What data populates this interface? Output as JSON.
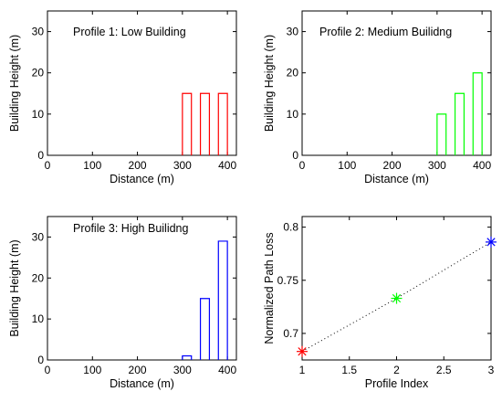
{
  "chart_data": [
    {
      "type": "bar",
      "title": "Profile 1: Low Building",
      "xlabel": "Distance (m)",
      "ylabel": "Building Height (m)",
      "xlim": [
        0,
        420
      ],
      "ylim": [
        0,
        35
      ],
      "xticks": [
        0,
        100,
        200,
        300,
        400
      ],
      "yticks": [
        0,
        10,
        20,
        30
      ],
      "color": "#ff0000",
      "buildings": [
        {
          "start": 300,
          "end": 320,
          "height": 15
        },
        {
          "start": 340,
          "end": 360,
          "height": 15
        },
        {
          "start": 380,
          "end": 400,
          "height": 15
        }
      ]
    },
    {
      "type": "bar",
      "title": "Profile 2: Medium Builidng",
      "xlabel": "Distance (m)",
      "ylabel": "Building Height (m)",
      "xlim": [
        0,
        420
      ],
      "ylim": [
        0,
        35
      ],
      "xticks": [
        0,
        100,
        200,
        300,
        400
      ],
      "yticks": [
        0,
        10,
        20,
        30
      ],
      "color": "#00ff00",
      "buildings": [
        {
          "start": 300,
          "end": 320,
          "height": 10
        },
        {
          "start": 340,
          "end": 360,
          "height": 15
        },
        {
          "start": 380,
          "end": 400,
          "height": 20
        }
      ]
    },
    {
      "type": "bar",
      "title": "Profile 3: High Builidng",
      "xlabel": "Distance (m)",
      "ylabel": "Building Height (m)",
      "xlim": [
        0,
        420
      ],
      "ylim": [
        0,
        35
      ],
      "xticks": [
        0,
        100,
        200,
        300,
        400
      ],
      "yticks": [
        0,
        10,
        20,
        30
      ],
      "color": "#0000ff",
      "buildings": [
        {
          "start": 300,
          "end": 320,
          "height": 1
        },
        {
          "start": 340,
          "end": 360,
          "height": 15
        },
        {
          "start": 380,
          "end": 400,
          "height": 29
        }
      ]
    },
    {
      "type": "scatter",
      "title": "",
      "xlabel": "Profile Index",
      "ylabel": "Normalized Path Loss",
      "xlim": [
        1,
        3
      ],
      "ylim": [
        0.675,
        0.81
      ],
      "xticks": [
        1,
        1.5,
        2,
        2.5,
        3
      ],
      "yticks": [
        0.7,
        0.75,
        0.8
      ],
      "line_style": "dotted",
      "points": [
        {
          "x": 1,
          "y": 0.683,
          "color": "#ff0000"
        },
        {
          "x": 2,
          "y": 0.733,
          "color": "#00ff00"
        },
        {
          "x": 3,
          "y": 0.786,
          "color": "#0000ff"
        }
      ]
    }
  ]
}
